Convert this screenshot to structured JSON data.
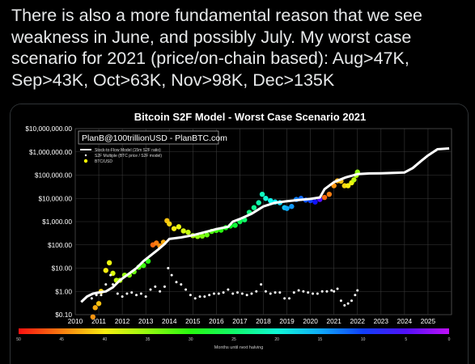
{
  "tweet": {
    "text": "There is also a more fundamental reason that we see\nweakness in June, and possibly July. My worst case\nscenario for 2021 (price/on-chain based): Aug>47K,\nSep>43K, Oct>63K, Nov>98K, Dec>135K"
  },
  "colors": {
    "background": "#000000",
    "text": "#e7e9ea",
    "plot_bg": "#000000",
    "grid": "#3a3a3a",
    "model_line": "#ffffff",
    "s2f_multiple": "#ffffff",
    "btc_usd_legend": "#ffff00"
  },
  "chart_data": {
    "type": "scatter",
    "title": "Bitcoin S2F Model - Worst Case Scenario 2021",
    "watermark": "PlanB@100trillionUSD - PlanBTC.com",
    "y_scale": "log",
    "ylim": [
      0.1,
      10000000
    ],
    "xlim": [
      2010,
      2026
    ],
    "y_ticks": [
      "$0.10",
      "$1.00",
      "$10.00",
      "$100.00",
      "$1,000.00",
      "$10,000.00",
      "$100,000.00",
      "$1,000,000.00",
      "$10,000,000.00"
    ],
    "x_ticks": [
      "2010",
      "2011",
      "2012",
      "2013",
      "2014",
      "2015",
      "2016",
      "2017",
      "2018",
      "2019",
      "2020",
      "2021",
      "2022",
      "2023",
      "2024",
      "2025"
    ],
    "grid": true,
    "legend_position": "top-left",
    "legend": [
      {
        "label": "Stock-to-Flow Model (15m S2F ratio)",
        "marker": "line",
        "color": "#ffffff"
      },
      {
        "label": "S2F Multiple (BTC price / S2F model)",
        "marker": "dot",
        "color": "#ffffff"
      },
      {
        "label": "BTC/USD",
        "marker": "dot",
        "color": "#ffff00"
      }
    ],
    "colorbar": {
      "label": "Months until next halving",
      "ticks": [
        "50",
        "45",
        "40",
        "35",
        "30",
        "25",
        "20",
        "15",
        "10",
        "5",
        "0"
      ],
      "range": [
        50,
        0
      ]
    },
    "series": [
      {
        "name": "Stock-to-Flow Model (15m S2F ratio)",
        "kind": "line",
        "points": [
          [
            2010.25,
            0.35
          ],
          [
            2010.5,
            0.6
          ],
          [
            2010.75,
            0.8
          ],
          [
            2011.0,
            0.9
          ],
          [
            2011.3,
            1.0
          ],
          [
            2011.6,
            1.5
          ],
          [
            2011.9,
            3
          ],
          [
            2012.2,
            5
          ],
          [
            2012.6,
            10
          ],
          [
            2012.9,
            20
          ],
          [
            2013.2,
            35
          ],
          [
            2013.5,
            60
          ],
          [
            2013.8,
            110
          ],
          [
            2014.0,
            180
          ],
          [
            2014.5,
            210
          ],
          [
            2015.0,
            260
          ],
          [
            2015.5,
            350
          ],
          [
            2016.0,
            480
          ],
          [
            2016.5,
            600
          ],
          [
            2016.7,
            1000
          ],
          [
            2017.0,
            1300
          ],
          [
            2017.5,
            2200
          ],
          [
            2018.0,
            4500
          ],
          [
            2018.5,
            6500
          ],
          [
            2019.0,
            7500
          ],
          [
            2019.5,
            8500
          ],
          [
            2020.0,
            9500
          ],
          [
            2020.4,
            11000
          ],
          [
            2020.6,
            25000
          ],
          [
            2021.0,
            50000
          ],
          [
            2021.5,
            80000
          ],
          [
            2022.0,
            110000
          ],
          [
            2022.5,
            118000
          ],
          [
            2023.0,
            120000
          ],
          [
            2023.5,
            125000
          ],
          [
            2024.0,
            130000
          ],
          [
            2024.35,
            200000
          ],
          [
            2024.7,
            400000
          ],
          [
            2025.0,
            700000
          ],
          [
            2025.4,
            1300000
          ],
          [
            2025.9,
            1400000
          ]
        ]
      },
      {
        "name": "S2F Multiple (BTC price / S2F model)",
        "kind": "scatter",
        "points": [
          [
            2010.7,
            0.5
          ],
          [
            2010.9,
            0.7
          ],
          [
            2011.1,
            0.7
          ],
          [
            2011.3,
            2
          ],
          [
            2011.5,
            5
          ],
          [
            2011.6,
            2
          ],
          [
            2011.8,
            0.8
          ],
          [
            2012.0,
            0.6
          ],
          [
            2012.2,
            0.8
          ],
          [
            2012.4,
            0.9
          ],
          [
            2012.6,
            0.7
          ],
          [
            2012.8,
            0.8
          ],
          [
            2013.0,
            0.6
          ],
          [
            2013.2,
            1.2
          ],
          [
            2013.4,
            1.6
          ],
          [
            2013.6,
            1.0
          ],
          [
            2013.8,
            1.6
          ],
          [
            2013.95,
            10
          ],
          [
            2014.1,
            5
          ],
          [
            2014.3,
            2.5
          ],
          [
            2014.5,
            2
          ],
          [
            2014.7,
            1.2
          ],
          [
            2014.9,
            0.7
          ],
          [
            2015.1,
            0.5
          ],
          [
            2015.3,
            0.6
          ],
          [
            2015.5,
            0.6
          ],
          [
            2015.7,
            0.7
          ],
          [
            2015.9,
            0.8
          ],
          [
            2016.1,
            0.8
          ],
          [
            2016.3,
            0.9
          ],
          [
            2016.5,
            1.2
          ],
          [
            2016.7,
            0.8
          ],
          [
            2016.9,
            0.9
          ],
          [
            2017.1,
            0.8
          ],
          [
            2017.3,
            0.7
          ],
          [
            2017.5,
            0.8
          ],
          [
            2017.7,
            1.0
          ],
          [
            2017.9,
            2.0
          ],
          [
            2018.1,
            1.0
          ],
          [
            2018.3,
            0.8
          ],
          [
            2018.5,
            0.9
          ],
          [
            2018.7,
            0.9
          ],
          [
            2018.9,
            0.5
          ],
          [
            2019.1,
            0.5
          ],
          [
            2019.3,
            0.9
          ],
          [
            2019.5,
            1.1
          ],
          [
            2019.7,
            1.0
          ],
          [
            2019.9,
            0.9
          ],
          [
            2020.1,
            0.8
          ],
          [
            2020.3,
            0.8
          ],
          [
            2020.5,
            1.0
          ],
          [
            2020.7,
            1.0
          ],
          [
            2020.9,
            1.1
          ],
          [
            2021.0,
            1.0
          ],
          [
            2021.15,
            1.3
          ],
          [
            2021.3,
            0.4
          ],
          [
            2021.45,
            0.25
          ],
          [
            2021.6,
            0.3
          ],
          [
            2021.75,
            0.4
          ],
          [
            2021.9,
            0.7
          ],
          [
            2022.0,
            1.1
          ]
        ]
      },
      {
        "name": "BTC/USD",
        "kind": "scatter",
        "colored_by": "months_until_next_halving",
        "points": [
          [
            2010.75,
            0.08,
            44
          ],
          [
            2010.85,
            0.2,
            43
          ],
          [
            2011.0,
            0.3,
            42
          ],
          [
            2011.1,
            1.0,
            41
          ],
          [
            2011.3,
            8,
            40
          ],
          [
            2011.45,
            17,
            39
          ],
          [
            2011.6,
            6,
            38
          ],
          [
            2011.75,
            3,
            37
          ],
          [
            2011.9,
            3,
            36
          ],
          [
            2012.1,
            5,
            35
          ],
          [
            2012.3,
            5,
            34
          ],
          [
            2012.5,
            7,
            33
          ],
          [
            2012.7,
            11,
            32
          ],
          [
            2012.9,
            13,
            31
          ],
          [
            2013.1,
            20,
            30
          ],
          [
            2013.3,
            100,
            46
          ],
          [
            2013.45,
            120,
            45
          ],
          [
            2013.6,
            90,
            44
          ],
          [
            2013.75,
            130,
            43
          ],
          [
            2013.9,
            1100,
            42
          ],
          [
            2014.0,
            800,
            41
          ],
          [
            2014.2,
            500,
            40
          ],
          [
            2014.4,
            600,
            39
          ],
          [
            2014.6,
            400,
            38
          ],
          [
            2014.8,
            350,
            37
          ],
          [
            2015.0,
            250,
            36
          ],
          [
            2015.2,
            230,
            35
          ],
          [
            2015.4,
            240,
            34
          ],
          [
            2015.6,
            270,
            33
          ],
          [
            2015.8,
            380,
            32
          ],
          [
            2016.0,
            420,
            31
          ],
          [
            2016.2,
            430,
            30
          ],
          [
            2016.4,
            550,
            29
          ],
          [
            2016.6,
            650,
            28
          ],
          [
            2016.8,
            700,
            27
          ],
          [
            2017.0,
            1000,
            26
          ],
          [
            2017.2,
            1200,
            25
          ],
          [
            2017.4,
            2500,
            24
          ],
          [
            2017.6,
            4000,
            23
          ],
          [
            2017.8,
            6500,
            22
          ],
          [
            2017.95,
            15000,
            21
          ],
          [
            2018.1,
            10000,
            20
          ],
          [
            2018.3,
            8000,
            19
          ],
          [
            2018.5,
            7000,
            18
          ],
          [
            2018.7,
            6500,
            17
          ],
          [
            2018.9,
            4000,
            16
          ],
          [
            2019.0,
            3700,
            15
          ],
          [
            2019.2,
            4500,
            14
          ],
          [
            2019.4,
            9000,
            13
          ],
          [
            2019.6,
            10000,
            12
          ],
          [
            2019.8,
            8500,
            11
          ],
          [
            2020.0,
            8000,
            10
          ],
          [
            2020.2,
            7000,
            8
          ],
          [
            2020.4,
            9000,
            5
          ],
          [
            2020.6,
            11000,
            46
          ],
          [
            2020.8,
            15000,
            45
          ],
          [
            2021.0,
            35000,
            44
          ],
          [
            2021.15,
            57000,
            43
          ],
          [
            2021.3,
            55000,
            42
          ],
          [
            2021.45,
            35000,
            41
          ],
          [
            2021.6,
            35000,
            40
          ],
          [
            2021.75,
            47000,
            39
          ],
          [
            2021.85,
            63000,
            37
          ],
          [
            2021.95,
            98000,
            36
          ],
          [
            2022.0,
            135000,
            35
          ]
        ]
      }
    ]
  }
}
